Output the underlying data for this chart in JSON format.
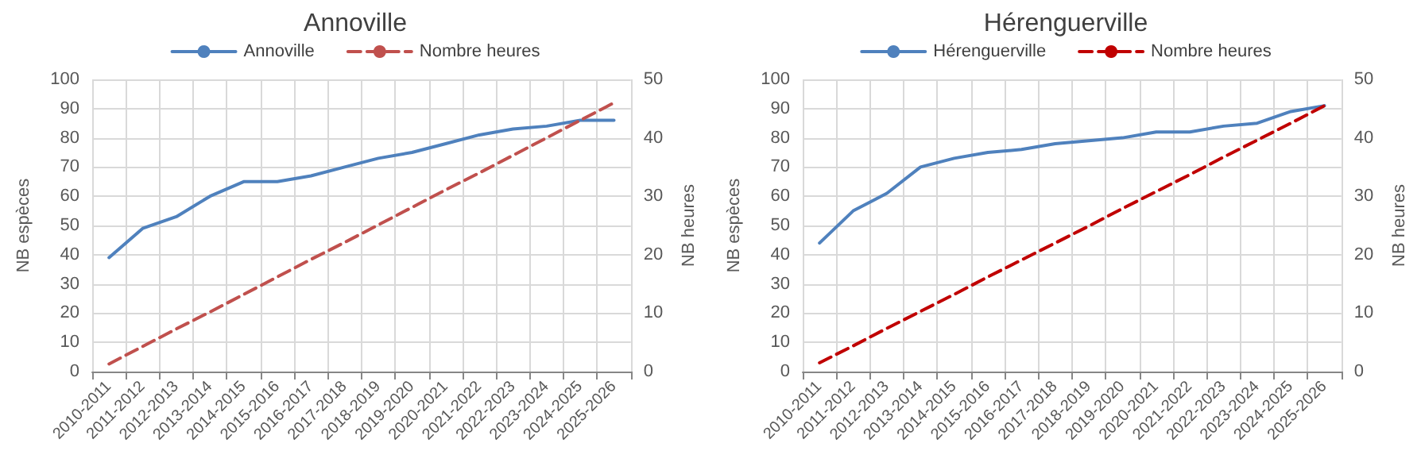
{
  "chart_data": [
    {
      "type": "line",
      "title": "Annoville",
      "ylabel": "NB espèces",
      "y2label": "NB heures",
      "categories": [
        "2010-2011",
        "2011-2012",
        "2012-2013",
        "2013-2014",
        "2014-2015",
        "2015-2016",
        "2016-2017",
        "2017-2018",
        "2018-2019",
        "2019-2020",
        "2020-2021",
        "2021-2022",
        "2022-2023",
        "2023-2024",
        "2024-2025",
        "2025-2026"
      ],
      "series": [
        {
          "name": "Annoville",
          "color": "#4f81bd",
          "line_style": "solid",
          "values": [
            39,
            49,
            53,
            60,
            65,
            65,
            67,
            70,
            73,
            75,
            78,
            81,
            83,
            84,
            86,
            86
          ]
        },
        {
          "name": "Nombre heures",
          "color": "#c0504d",
          "line_style": "dashed",
          "axis": "y2",
          "values": [
            1.3,
            4.3,
            7.3,
            10.2,
            13.2,
            16.2,
            19.2,
            22.1,
            25.1,
            28.1,
            31.1,
            34,
            37,
            40,
            43,
            46
          ]
        }
      ],
      "ylim": [
        0,
        100
      ],
      "yticks": [
        0,
        10,
        20,
        30,
        40,
        50,
        60,
        70,
        80,
        90,
        100
      ],
      "y2lim": [
        0,
        50
      ],
      "y2ticks": [
        0,
        10,
        20,
        30,
        40,
        50
      ],
      "grid": true,
      "legend": "top",
      "marker": "none"
    },
    {
      "type": "line",
      "title": "Hérenguerville",
      "ylabel": "NB espèces",
      "y2label": "NB heures",
      "categories": [
        "2010-2011",
        "2011-2012",
        "2012-2013",
        "2013-2014",
        "2014-2015",
        "2015-2016",
        "2016-2017",
        "2017-2018",
        "2018-2019",
        "2019-2020",
        "2020-2021",
        "2021-2022",
        "2022-2023",
        "2023-2024",
        "2024-2025",
        "2025-2026"
      ],
      "series": [
        {
          "name": "Hérenguerville",
          "color": "#4f81bd",
          "line_style": "solid",
          "values": [
            44,
            55,
            61,
            70,
            73,
            75,
            76,
            78,
            79,
            80,
            82,
            82,
            84,
            85,
            89,
            91
          ]
        },
        {
          "name": "Nombre heures",
          "color": "#c00000",
          "line_style": "dashed",
          "axis": "y2",
          "values": [
            1.5,
            4.4,
            7.4,
            10.3,
            13.2,
            16.2,
            19.1,
            22,
            24.9,
            27.9,
            30.8,
            33.7,
            36.7,
            39.6,
            42.5,
            45.5
          ]
        }
      ],
      "ylim": [
        0,
        100
      ],
      "yticks": [
        0,
        10,
        20,
        30,
        40,
        50,
        60,
        70,
        80,
        90,
        100
      ],
      "y2lim": [
        0,
        50
      ],
      "y2ticks": [
        0,
        10,
        20,
        30,
        40,
        50
      ],
      "grid": true,
      "legend": "top",
      "marker": "none"
    }
  ]
}
